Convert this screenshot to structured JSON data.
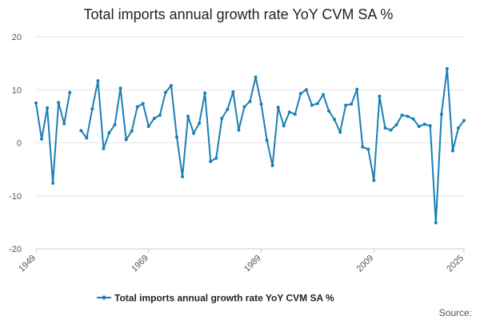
{
  "chart_data": {
    "type": "line",
    "title": "Total imports annual growth rate YoY CVM SA %",
    "xlabel": "",
    "ylabel": "",
    "xlim": [
      1949,
      2025
    ],
    "ylim": [
      -20,
      20
    ],
    "y_ticks": [
      20,
      10,
      0,
      -10,
      -20
    ],
    "x_ticks": [
      1949,
      1969,
      1989,
      2009,
      2025
    ],
    "grid": true,
    "legend_position": "bottom",
    "source_label": "Source:",
    "colors": {
      "series": "#1a7fb5",
      "grid": "#e3e3e3"
    },
    "series": [
      {
        "name": "Total imports annual growth rate YoY CVM SA %",
        "points": [
          [
            1949,
            7.5
          ],
          [
            1950,
            0.7
          ],
          [
            1951,
            6.6
          ],
          [
            1952,
            -7.6
          ],
          [
            1953,
            7.6
          ],
          [
            1954,
            3.6
          ],
          [
            1955,
            9.5
          ],
          [
            1956,
            null
          ],
          [
            1957,
            2.3
          ],
          [
            1958,
            0.9
          ],
          [
            1959,
            6.4
          ],
          [
            1960,
            11.7
          ],
          [
            1961,
            -1.1
          ],
          [
            1962,
            1.9
          ],
          [
            1963,
            3.4
          ],
          [
            1964,
            10.3
          ],
          [
            1965,
            0.6
          ],
          [
            1966,
            2.2
          ],
          [
            1967,
            6.8
          ],
          [
            1968,
            7.4
          ],
          [
            1969,
            3.1
          ],
          [
            1970,
            4.6
          ],
          [
            1971,
            5.2
          ],
          [
            1972,
            9.5
          ],
          [
            1973,
            10.8
          ],
          [
            1974,
            1.1
          ],
          [
            1975,
            -6.4
          ],
          [
            1976,
            5.0
          ],
          [
            1977,
            1.8
          ],
          [
            1978,
            3.7
          ],
          [
            1979,
            9.4
          ],
          [
            1980,
            -3.5
          ],
          [
            1981,
            -2.9
          ],
          [
            1982,
            4.6
          ],
          [
            1983,
            6.3
          ],
          [
            1984,
            9.6
          ],
          [
            1985,
            2.4
          ],
          [
            1986,
            6.8
          ],
          [
            1987,
            7.8
          ],
          [
            1988,
            12.4
          ],
          [
            1989,
            7.3
          ],
          [
            1990,
            0.5
          ],
          [
            1991,
            -4.3
          ],
          [
            1992,
            6.7
          ],
          [
            1993,
            3.2
          ],
          [
            1994,
            5.8
          ],
          [
            1995,
            5.4
          ],
          [
            1996,
            9.3
          ],
          [
            1997,
            10.0
          ],
          [
            1998,
            7.1
          ],
          [
            1999,
            7.4
          ],
          [
            2000,
            9.1
          ],
          [
            2001,
            6.0
          ],
          [
            2002,
            4.4
          ],
          [
            2003,
            2.0
          ],
          [
            2004,
            7.1
          ],
          [
            2005,
            7.3
          ],
          [
            2006,
            10.1
          ],
          [
            2007,
            -0.8
          ],
          [
            2008,
            -1.2
          ],
          [
            2009,
            -7.1
          ],
          [
            2010,
            8.8
          ],
          [
            2011,
            2.8
          ],
          [
            2012,
            2.4
          ],
          [
            2013,
            3.4
          ],
          [
            2014,
            5.2
          ],
          [
            2015,
            5.0
          ],
          [
            2016,
            4.5
          ],
          [
            2017,
            3.1
          ],
          [
            2018,
            3.5
          ],
          [
            2019,
            3.2
          ],
          [
            2020,
            -15.1
          ],
          [
            2021,
            5.4
          ],
          [
            2022,
            14.0
          ],
          [
            2023,
            -1.5
          ],
          [
            2024,
            2.8
          ],
          [
            2025,
            4.2
          ]
        ]
      }
    ]
  }
}
